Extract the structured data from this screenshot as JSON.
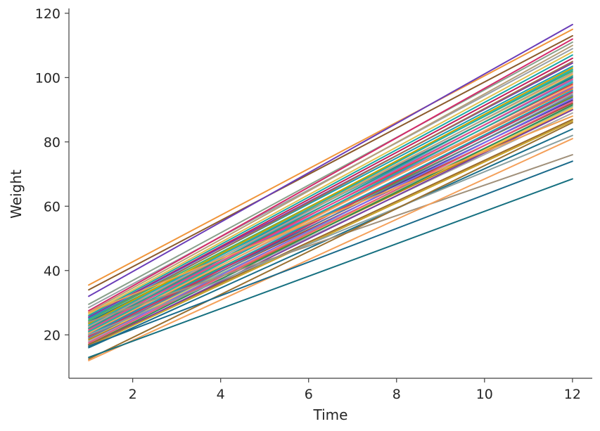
{
  "chart_data": {
    "type": "line",
    "xlabel": "Time",
    "ylabel": "Weight",
    "xlim": [
      0.55,
      12.45
    ],
    "ylim": [
      6.5,
      121.5
    ],
    "xticks": [
      2,
      4,
      6,
      8,
      10,
      12
    ],
    "yticks": [
      20,
      40,
      60,
      80,
      100,
      120
    ],
    "grid": false,
    "legend": "none",
    "x": [
      1,
      12
    ],
    "series": [
      {
        "values": [
          35.5,
          115.0
        ],
        "color": "#f0953a"
      },
      {
        "values": [
          34.0,
          113.0
        ],
        "color": "#8b5a2b"
      },
      {
        "values": [
          32.0,
          116.5
        ],
        "color": "#6a3db8"
      },
      {
        "values": [
          29.5,
          111.0
        ],
        "color": "#8aa18c"
      },
      {
        "values": [
          28.5,
          109.0
        ],
        "color": "#9aa0a6"
      },
      {
        "values": [
          27.5,
          112.0
        ],
        "color": "#d42a6a"
      },
      {
        "values": [
          27.0,
          110.0
        ],
        "color": "#b5a07a"
      },
      {
        "values": [
          26.5,
          108.0
        ],
        "color": "#e0c050"
      },
      {
        "values": [
          26.0,
          107.0
        ],
        "color": "#1aa7a7"
      },
      {
        "values": [
          25.5,
          106.0
        ],
        "color": "#c21f5b"
      },
      {
        "values": [
          25.5,
          104.5
        ],
        "color": "#7a3da8"
      },
      {
        "values": [
          25.0,
          103.5
        ],
        "color": "#18a0b0"
      },
      {
        "values": [
          24.5,
          105.0
        ],
        "color": "#a07050"
      },
      {
        "values": [
          24.5,
          102.0
        ],
        "color": "#3cb371"
      },
      {
        "values": [
          24.0,
          101.0
        ],
        "color": "#f0b050"
      },
      {
        "values": [
          24.0,
          100.0
        ],
        "color": "#1a7a8a"
      },
      {
        "values": [
          23.5,
          99.0
        ],
        "color": "#5a9bd5"
      },
      {
        "values": [
          23.5,
          103.0
        ],
        "color": "#c8a000"
      },
      {
        "values": [
          23.0,
          98.0
        ],
        "color": "#d43f3f"
      },
      {
        "values": [
          23.0,
          102.5
        ],
        "color": "#22b0b0"
      },
      {
        "values": [
          22.5,
          97.0
        ],
        "color": "#8a5cc8"
      },
      {
        "values": [
          22.5,
          101.5
        ],
        "color": "#b0a090"
      },
      {
        "values": [
          22.0,
          96.5
        ],
        "color": "#e07b39"
      },
      {
        "values": [
          22.0,
          100.5
        ],
        "color": "#2a9d8f"
      },
      {
        "values": [
          21.5,
          95.0
        ],
        "color": "#9e9e9e"
      },
      {
        "values": [
          21.5,
          99.5
        ],
        "color": "#e34a8a"
      },
      {
        "values": [
          21.0,
          94.0
        ],
        "color": "#6b8e23"
      },
      {
        "values": [
          21.0,
          98.5
        ],
        "color": "#20b2aa"
      },
      {
        "values": [
          20.5,
          93.0
        ],
        "color": "#4b3c8c"
      },
      {
        "values": [
          20.5,
          97.5
        ],
        "color": "#f4a261"
      },
      {
        "values": [
          20.0,
          92.0
        ],
        "color": "#a0522d"
      },
      {
        "values": [
          20.0,
          96.0
        ],
        "color": "#17a2b8"
      },
      {
        "values": [
          19.5,
          91.0
        ],
        "color": "#8fbc8f"
      },
      {
        "values": [
          19.5,
          95.5
        ],
        "color": "#cc3366"
      },
      {
        "values": [
          19.0,
          90.5
        ],
        "color": "#ffc04d"
      },
      {
        "values": [
          19.0,
          94.5
        ],
        "color": "#5f7f9f"
      },
      {
        "values": [
          18.5,
          90.0
        ],
        "color": "#b8860b"
      },
      {
        "values": [
          18.0,
          93.5
        ],
        "color": "#7b68ee"
      },
      {
        "values": [
          18.0,
          89.0
        ],
        "color": "#a9a9a9"
      },
      {
        "values": [
          17.5,
          92.5
        ],
        "color": "#e75480"
      },
      {
        "values": [
          17.0,
          91.5
        ],
        "color": "#2e8b57"
      },
      {
        "values": [
          17.0,
          87.0
        ],
        "color": "#9a6a2a"
      },
      {
        "values": [
          16.5,
          90.0
        ],
        "color": "#7b3fa0"
      },
      {
        "values": [
          16.5,
          86.5
        ],
        "color": "#c9a227"
      },
      {
        "values": [
          16.0,
          84.0
        ],
        "color": "#1a6e8a"
      },
      {
        "values": [
          20.0,
          82.0
        ],
        "color": "#8aa0a0"
      },
      {
        "values": [
          24.0,
          76.0
        ],
        "color": "#a0907a"
      },
      {
        "values": [
          27.0,
          88.0
        ],
        "color": "#f0a050"
      },
      {
        "values": [
          12.0,
          81.0
        ],
        "color": "#f4a05a"
      },
      {
        "values": [
          12.5,
          86.0
        ],
        "color": "#9a7030"
      },
      {
        "values": [
          13.0,
          68.5
        ],
        "color": "#167080"
      },
      {
        "values": [
          16.5,
          74.0
        ],
        "color": "#1a6a8a"
      }
    ]
  }
}
